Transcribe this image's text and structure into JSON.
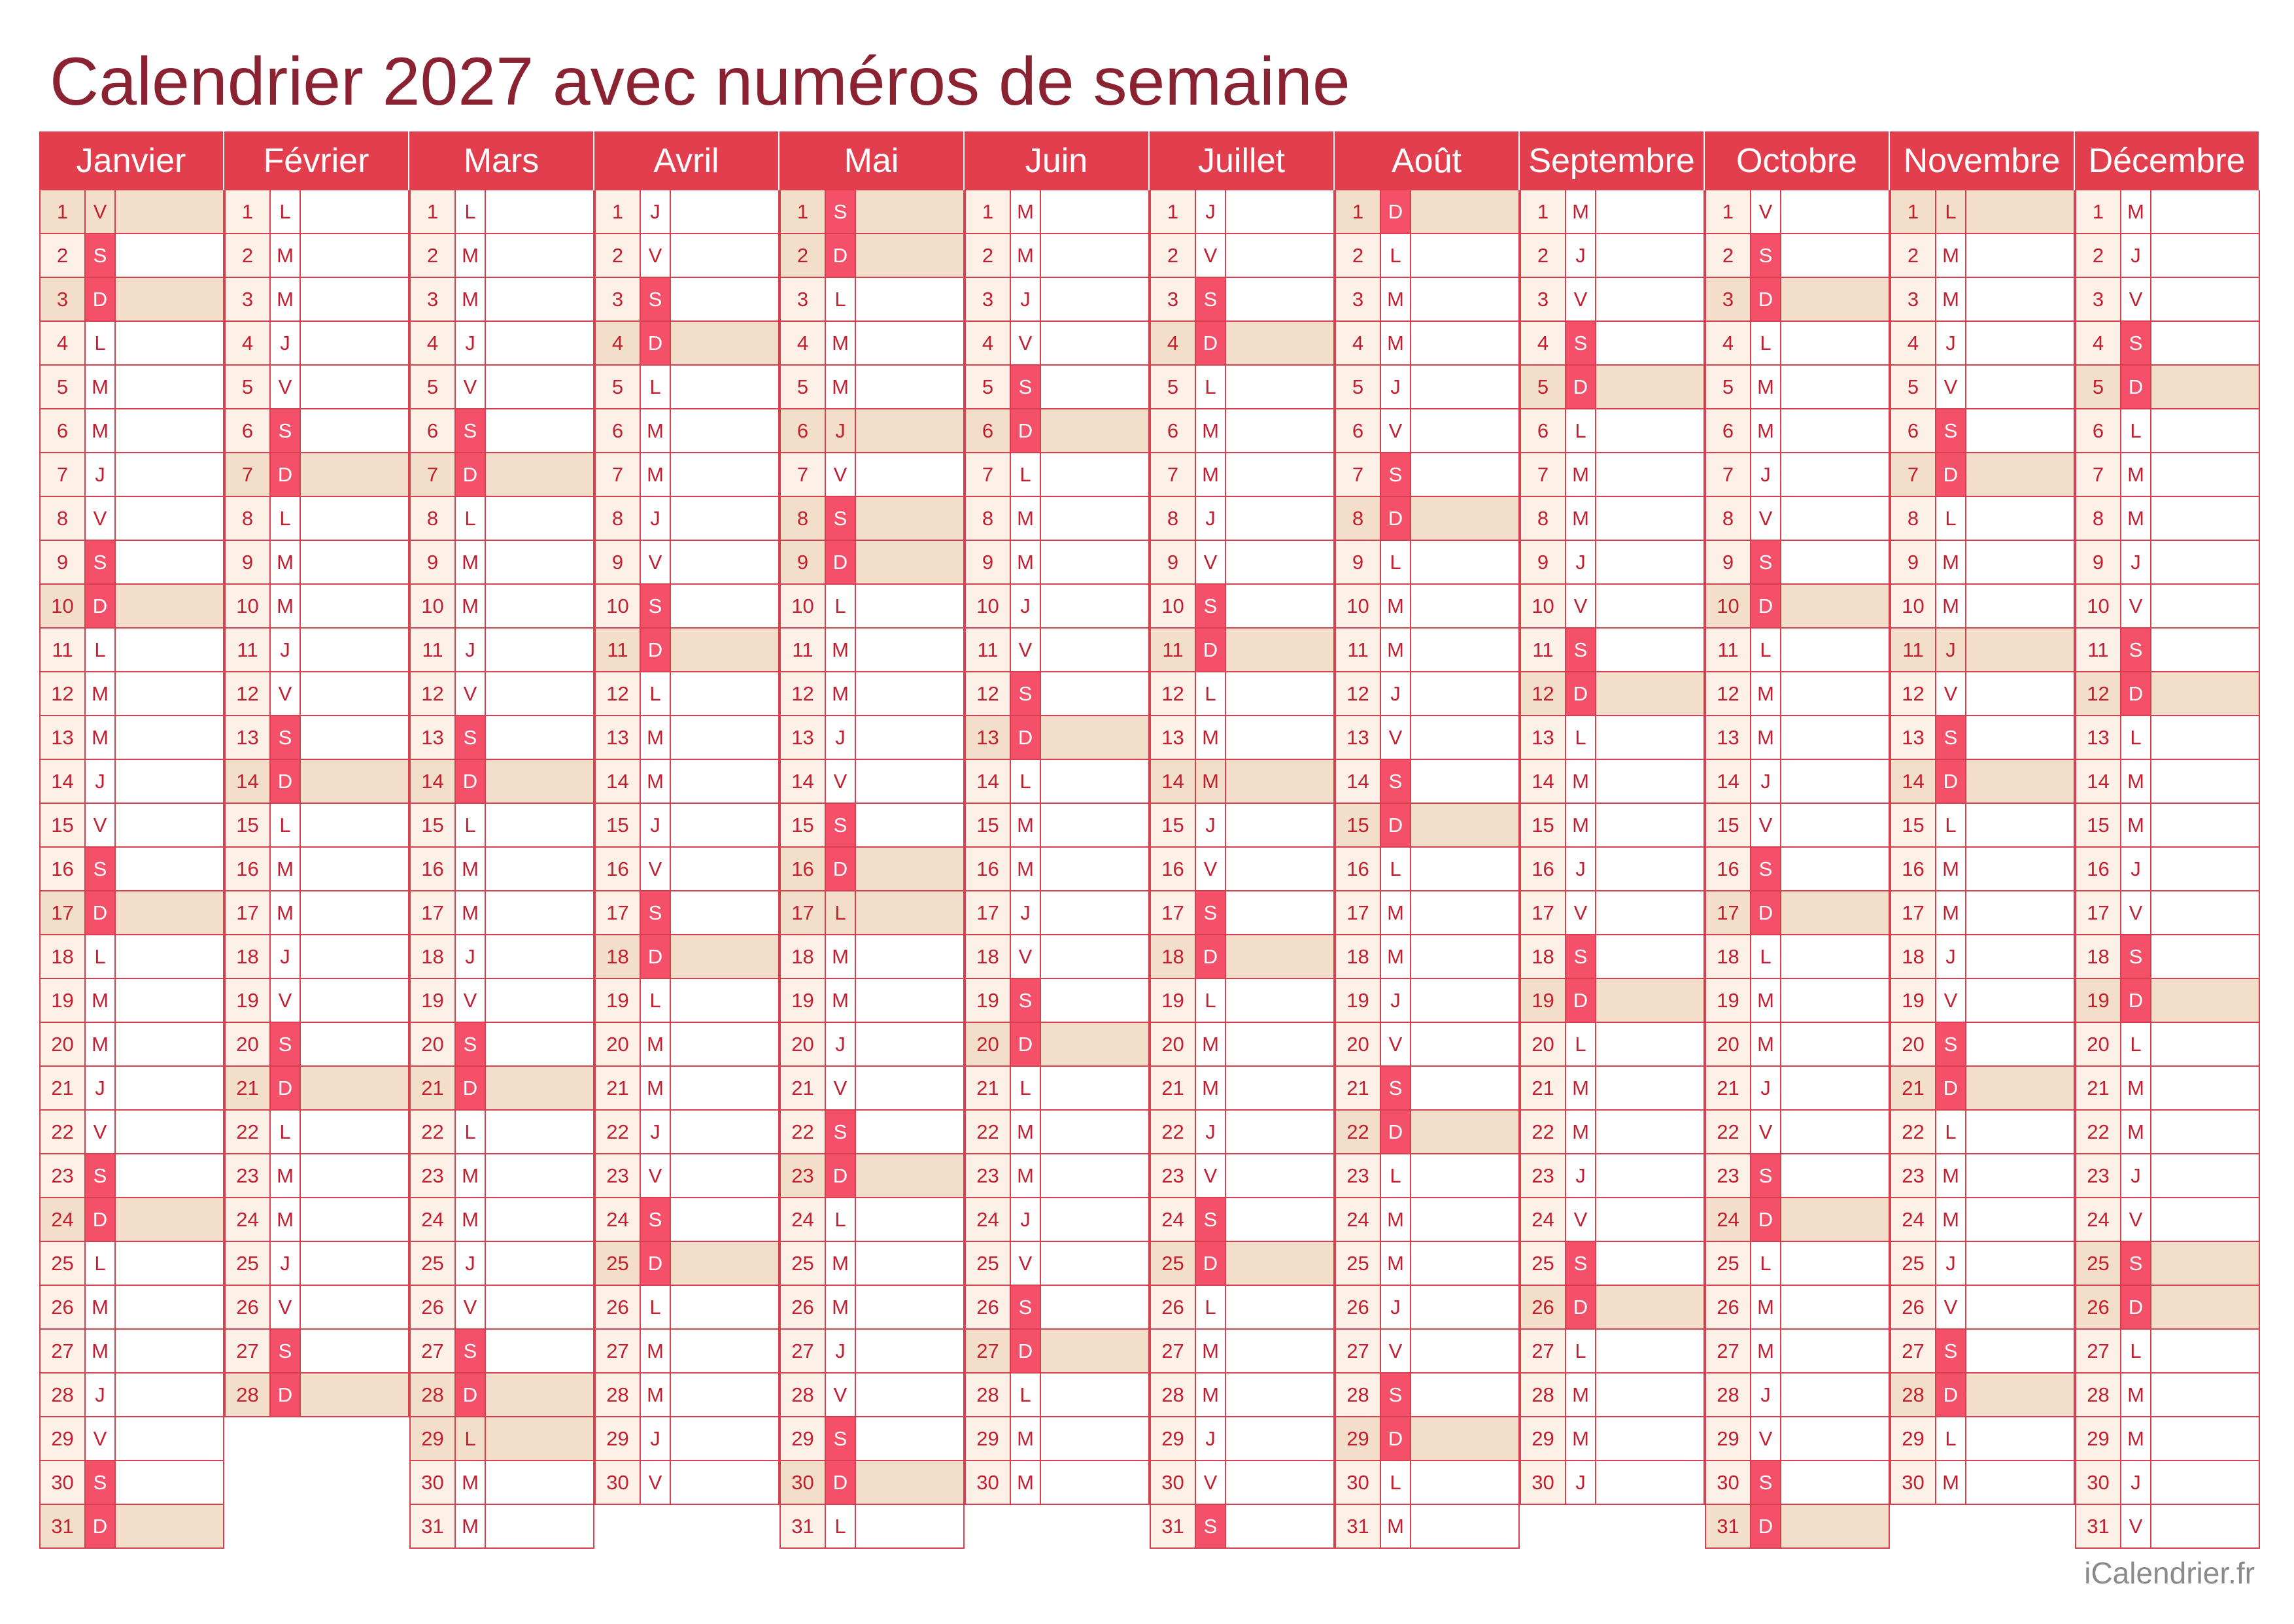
{
  "title": "Calendrier 2027 avec numéros de semaine",
  "footer": "iCalendrier.fr",
  "colors": {
    "title": "#8b2232",
    "header_bg": "#e23e4e",
    "weekend_letter_bg": "#f4506a",
    "shaded_bg": "#f3dfc9",
    "text": "#c21f31",
    "footer": "#8a8a8a"
  },
  "months": [
    {
      "name": "Janvier",
      "days": [
        "V",
        "S",
        "D",
        "L",
        "M",
        "M",
        "J",
        "V",
        "S",
        "D",
        "L",
        "M",
        "M",
        "J",
        "V",
        "S",
        "D",
        "L",
        "M",
        "M",
        "J",
        "V",
        "S",
        "D",
        "L",
        "M",
        "M",
        "J",
        "V",
        "S",
        "D"
      ],
      "holidays": [
        1
      ]
    },
    {
      "name": "Février",
      "days": [
        "L",
        "M",
        "M",
        "J",
        "V",
        "S",
        "D",
        "L",
        "M",
        "M",
        "J",
        "V",
        "S",
        "D",
        "L",
        "M",
        "M",
        "J",
        "V",
        "S",
        "D",
        "L",
        "M",
        "M",
        "J",
        "V",
        "S",
        "D"
      ],
      "holidays": []
    },
    {
      "name": "Mars",
      "days": [
        "L",
        "M",
        "M",
        "J",
        "V",
        "S",
        "D",
        "L",
        "M",
        "M",
        "J",
        "V",
        "S",
        "D",
        "L",
        "M",
        "M",
        "J",
        "V",
        "S",
        "D",
        "L",
        "M",
        "M",
        "J",
        "V",
        "S",
        "D",
        "L",
        "M",
        "M"
      ],
      "holidays": [
        29
      ]
    },
    {
      "name": "Avril",
      "days": [
        "J",
        "V",
        "S",
        "D",
        "L",
        "M",
        "M",
        "J",
        "V",
        "S",
        "D",
        "L",
        "M",
        "M",
        "J",
        "V",
        "S",
        "D",
        "L",
        "M",
        "M",
        "J",
        "V",
        "S",
        "D",
        "L",
        "M",
        "M",
        "J",
        "V"
      ],
      "holidays": []
    },
    {
      "name": "Mai",
      "days": [
        "S",
        "D",
        "L",
        "M",
        "M",
        "J",
        "V",
        "S",
        "D",
        "L",
        "M",
        "M",
        "J",
        "V",
        "S",
        "D",
        "L",
        "M",
        "M",
        "J",
        "V",
        "S",
        "D",
        "L",
        "M",
        "M",
        "J",
        "V",
        "S",
        "D",
        "L"
      ],
      "holidays": [
        1,
        6,
        8,
        17
      ]
    },
    {
      "name": "Juin",
      "days": [
        "M",
        "M",
        "J",
        "V",
        "S",
        "D",
        "L",
        "M",
        "M",
        "J",
        "V",
        "S",
        "D",
        "L",
        "M",
        "M",
        "J",
        "V",
        "S",
        "D",
        "L",
        "M",
        "M",
        "J",
        "V",
        "S",
        "D",
        "L",
        "M",
        "M"
      ],
      "holidays": []
    },
    {
      "name": "Juillet",
      "days": [
        "J",
        "V",
        "S",
        "D",
        "L",
        "M",
        "M",
        "J",
        "V",
        "S",
        "D",
        "L",
        "M",
        "M",
        "J",
        "V",
        "S",
        "D",
        "L",
        "M",
        "M",
        "J",
        "V",
        "S",
        "D",
        "L",
        "M",
        "M",
        "J",
        "V",
        "S"
      ],
      "holidays": [
        14
      ]
    },
    {
      "name": "Août",
      "days": [
        "D",
        "L",
        "M",
        "M",
        "J",
        "V",
        "S",
        "D",
        "L",
        "M",
        "M",
        "J",
        "V",
        "S",
        "D",
        "L",
        "M",
        "M",
        "J",
        "V",
        "S",
        "D",
        "L",
        "M",
        "M",
        "J",
        "V",
        "S",
        "D",
        "L",
        "M"
      ],
      "holidays": []
    },
    {
      "name": "Septembre",
      "days": [
        "M",
        "J",
        "V",
        "S",
        "D",
        "L",
        "M",
        "M",
        "J",
        "V",
        "S",
        "D",
        "L",
        "M",
        "M",
        "J",
        "V",
        "S",
        "D",
        "L",
        "M",
        "M",
        "J",
        "V",
        "S",
        "D",
        "L",
        "M",
        "M",
        "J"
      ],
      "holidays": []
    },
    {
      "name": "Octobre",
      "days": [
        "V",
        "S",
        "D",
        "L",
        "M",
        "M",
        "J",
        "V",
        "S",
        "D",
        "L",
        "M",
        "M",
        "J",
        "V",
        "S",
        "D",
        "L",
        "M",
        "M",
        "J",
        "V",
        "S",
        "D",
        "L",
        "M",
        "M",
        "J",
        "V",
        "S",
        "D"
      ],
      "holidays": []
    },
    {
      "name": "Novembre",
      "days": [
        "L",
        "M",
        "M",
        "J",
        "V",
        "S",
        "D",
        "L",
        "M",
        "M",
        "J",
        "V",
        "S",
        "D",
        "L",
        "M",
        "M",
        "J",
        "V",
        "S",
        "D",
        "L",
        "M",
        "M",
        "J",
        "V",
        "S",
        "D",
        "L",
        "M"
      ],
      "holidays": [
        1,
        11
      ]
    },
    {
      "name": "Décembre",
      "days": [
        "M",
        "J",
        "V",
        "S",
        "D",
        "L",
        "M",
        "M",
        "J",
        "V",
        "S",
        "D",
        "L",
        "M",
        "M",
        "J",
        "V",
        "S",
        "D",
        "L",
        "M",
        "M",
        "J",
        "V",
        "S",
        "D",
        "L",
        "M",
        "M",
        "J",
        "V"
      ],
      "holidays": [
        25
      ]
    }
  ]
}
